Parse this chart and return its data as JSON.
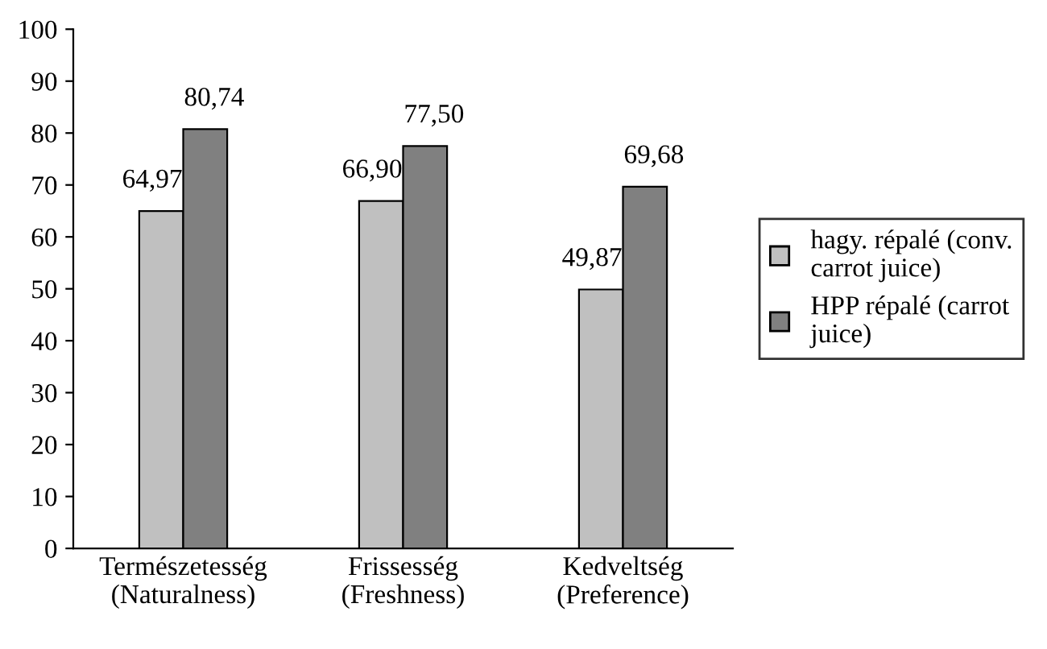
{
  "chart_data": {
    "type": "bar",
    "categories": [
      "Természetesség\n(Naturalness)",
      "Frissesség\n(Freshness)",
      "Kedveltség\n(Preference)"
    ],
    "series": [
      {
        "name": "hagy. répalé (conv.\ncarrot juice)",
        "color": "#c0c0c0",
        "values": [
          64.97,
          66.9,
          49.87
        ],
        "value_labels": [
          "64,97",
          "66,90",
          "49,87"
        ]
      },
      {
        "name": "HPP répalé (carrot\njuice)",
        "color": "#808080",
        "values": [
          80.74,
          77.5,
          69.68
        ],
        "value_labels": [
          "80,74",
          "77,50",
          "69,68"
        ]
      }
    ],
    "ylim": [
      0,
      100
    ],
    "yticks": [
      0,
      10,
      20,
      30,
      40,
      50,
      60,
      70,
      80,
      90,
      100
    ],
    "grid": false,
    "legend": "right"
  }
}
